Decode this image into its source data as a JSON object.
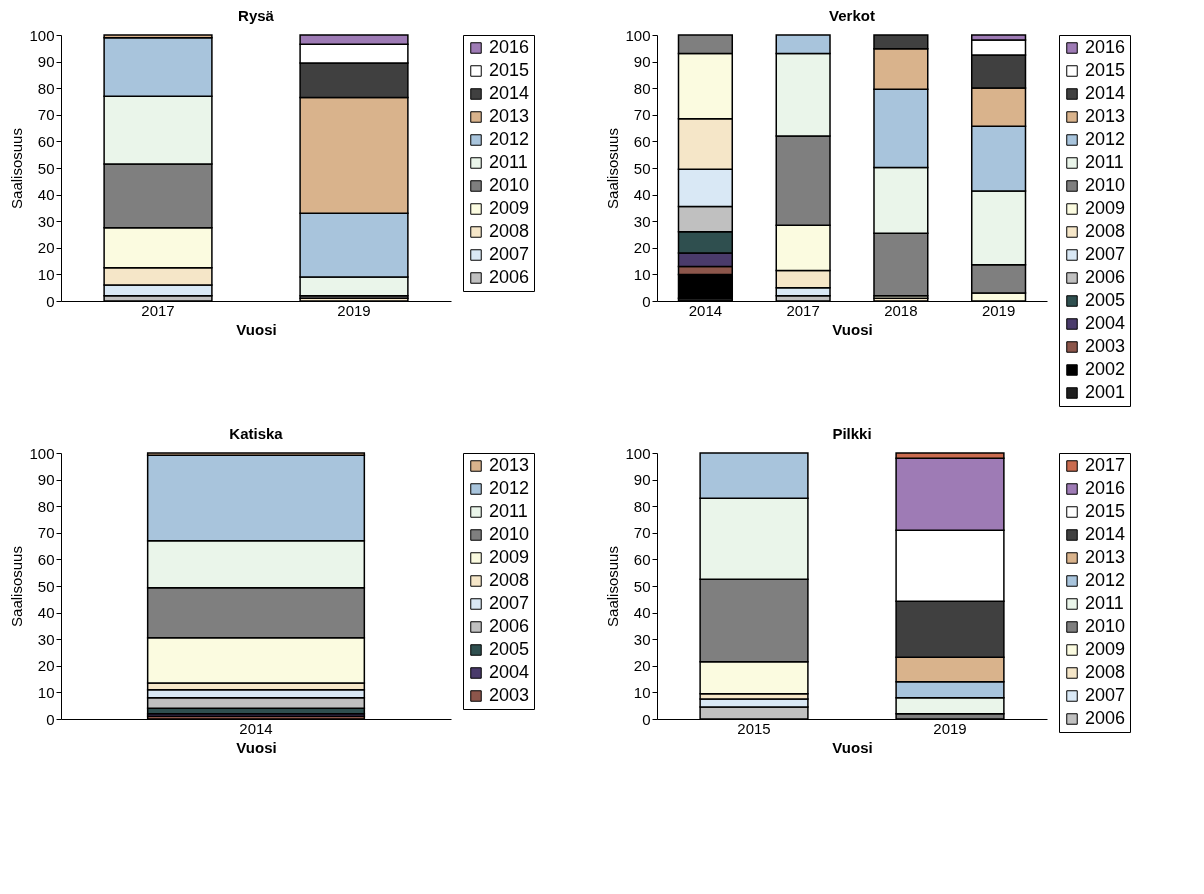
{
  "chart_data": [
    {
      "type": "bar",
      "title": "Rysä",
      "xlabel": "Vuosi",
      "ylabel": "Saalisosuus",
      "categories": [
        "2017",
        "2019"
      ],
      "stacked": true,
      "ylim": [
        0,
        100
      ],
      "yticks": [
        0,
        10,
        20,
        30,
        40,
        50,
        60,
        70,
        80,
        90,
        100
      ],
      "legend": "right",
      "series": [
        {
          "name": "2006",
          "color": "#c0c0c0",
          "values": [
            2,
            null
          ]
        },
        {
          "name": "2007",
          "color": "#d9e8f5",
          "values": [
            4,
            null
          ]
        },
        {
          "name": "2008",
          "color": "#f5e6c8",
          "values": [
            6.5,
            1
          ]
        },
        {
          "name": "2009",
          "color": "#fbfbe0",
          "values": [
            15,
            null
          ]
        },
        {
          "name": "2010",
          "color": "#7f7f7f",
          "values": [
            24,
            1
          ]
        },
        {
          "name": "2011",
          "color": "#eaf5ea",
          "values": [
            25.5,
            7
          ]
        },
        {
          "name": "2012",
          "color": "#a8c4dc",
          "values": [
            22,
            24
          ]
        },
        {
          "name": "2013",
          "color": "#d9b38c",
          "values": [
            1,
            43.5
          ]
        },
        {
          "name": "2014",
          "color": "#404040",
          "values": [
            null,
            13
          ]
        },
        {
          "name": "2015",
          "color": "#ffffff",
          "values": [
            null,
            7
          ]
        },
        {
          "name": "2016",
          "color": "#9e7bb5",
          "values": [
            null,
            3.5
          ]
        }
      ]
    },
    {
      "type": "bar",
      "title": "Verkot",
      "xlabel": "Vuosi",
      "ylabel": "Saalisosuus",
      "categories": [
        "2014",
        "2017",
        "2018",
        "2019"
      ],
      "stacked": true,
      "ylim": [
        0,
        100
      ],
      "yticks": [
        0,
        10,
        20,
        30,
        40,
        50,
        60,
        70,
        80,
        90,
        100
      ],
      "legend": "right",
      "series": [
        {
          "name": "2001",
          "color": "#1f1f1f",
          "values": [
            1,
            null,
            null,
            null
          ]
        },
        {
          "name": "2002",
          "color": "#000000",
          "values": [
            9,
            null,
            null,
            null
          ]
        },
        {
          "name": "2003",
          "color": "#8c564b",
          "values": [
            3,
            null,
            null,
            null
          ]
        },
        {
          "name": "2004",
          "color": "#4a3b6b",
          "values": [
            5,
            null,
            null,
            null
          ]
        },
        {
          "name": "2005",
          "color": "#2f4f4f",
          "values": [
            8,
            null,
            null,
            null
          ]
        },
        {
          "name": "2006",
          "color": "#c0c0c0",
          "values": [
            9.5,
            2,
            null,
            null
          ]
        },
        {
          "name": "2007",
          "color": "#d9e8f5",
          "values": [
            14,
            3,
            null,
            null
          ]
        },
        {
          "name": "2008",
          "color": "#f5e6c8",
          "values": [
            19,
            6.5,
            1,
            null
          ]
        },
        {
          "name": "2009",
          "color": "#fbfbe0",
          "values": [
            24.5,
            17,
            1,
            3
          ]
        },
        {
          "name": "2010",
          "color": "#7f7f7f",
          "values": [
            7,
            33.5,
            23.5,
            10.6
          ]
        },
        {
          "name": "2011",
          "color": "#eaf5ea",
          "values": [
            null,
            31,
            24.7,
            27.8
          ]
        },
        {
          "name": "2012",
          "color": "#a8c4dc",
          "values": [
            null,
            7,
            29.4,
            24.3
          ]
        },
        {
          "name": "2013",
          "color": "#d9b38c",
          "values": [
            null,
            null,
            15.2,
            14.4
          ]
        },
        {
          "name": "2014",
          "color": "#404040",
          "values": [
            null,
            null,
            5.2,
            12.4
          ]
        },
        {
          "name": "2015",
          "color": "#ffffff",
          "values": [
            null,
            null,
            null,
            5.6
          ]
        },
        {
          "name": "2016",
          "color": "#9e7bb5",
          "values": [
            null,
            null,
            null,
            1.9
          ]
        }
      ]
    },
    {
      "type": "bar",
      "title": "Katiska",
      "xlabel": "Vuosi",
      "ylabel": "Saalisosuus",
      "categories": [
        "2014"
      ],
      "stacked": true,
      "ylim": [
        0,
        100
      ],
      "yticks": [
        0,
        10,
        20,
        30,
        40,
        50,
        60,
        70,
        80,
        90,
        100
      ],
      "legend": "right",
      "series": [
        {
          "name": "2003",
          "color": "#8c564b",
          "values": [
            1
          ]
        },
        {
          "name": "2004",
          "color": "#4a3b6b",
          "values": [
            1
          ]
        },
        {
          "name": "2005",
          "color": "#2f4f4f",
          "values": [
            2
          ]
        },
        {
          "name": "2006",
          "color": "#c0c0c0",
          "values": [
            4
          ]
        },
        {
          "name": "2007",
          "color": "#d9e8f5",
          "values": [
            3
          ]
        },
        {
          "name": "2008",
          "color": "#f5e6c8",
          "values": [
            2.5
          ]
        },
        {
          "name": "2009",
          "color": "#fbfbe0",
          "values": [
            17
          ]
        },
        {
          "name": "2010",
          "color": "#7f7f7f",
          "values": [
            18.8
          ]
        },
        {
          "name": "2011",
          "color": "#eaf5ea",
          "values": [
            17.7
          ]
        },
        {
          "name": "2012",
          "color": "#a8c4dc",
          "values": [
            32.2
          ]
        },
        {
          "name": "2013",
          "color": "#d9b38c",
          "values": [
            0.8
          ]
        }
      ]
    },
    {
      "type": "bar",
      "title": "Pilkki",
      "xlabel": "Vuosi",
      "ylabel": "Saalisosuus",
      "categories": [
        "2015",
        "2019"
      ],
      "stacked": true,
      "ylim": [
        0,
        100
      ],
      "yticks": [
        0,
        10,
        20,
        30,
        40,
        50,
        60,
        70,
        80,
        90,
        100
      ],
      "legend": "right",
      "series": [
        {
          "name": "2006",
          "color": "#c0c0c0",
          "values": [
            4.5,
            null
          ]
        },
        {
          "name": "2007",
          "color": "#d9e8f5",
          "values": [
            3,
            null
          ]
        },
        {
          "name": "2008",
          "color": "#f5e6c8",
          "values": [
            2,
            null
          ]
        },
        {
          "name": "2009",
          "color": "#fbfbe0",
          "values": [
            12,
            null
          ]
        },
        {
          "name": "2010",
          "color": "#7f7f7f",
          "values": [
            31,
            2
          ]
        },
        {
          "name": "2011",
          "color": "#eaf5ea",
          "values": [
            30.5,
            6
          ]
        },
        {
          "name": "2012",
          "color": "#a8c4dc",
          "values": [
            17,
            6
          ]
        },
        {
          "name": "2013",
          "color": "#d9b38c",
          "values": [
            null,
            9.2
          ]
        },
        {
          "name": "2014",
          "color": "#404040",
          "values": [
            null,
            21.1
          ]
        },
        {
          "name": "2015",
          "color": "#ffffff",
          "values": [
            null,
            26.7
          ]
        },
        {
          "name": "2016",
          "color": "#9e7bb5",
          "values": [
            null,
            27
          ]
        },
        {
          "name": "2017",
          "color": "#c96b4f",
          "values": [
            null,
            2
          ]
        }
      ]
    }
  ]
}
